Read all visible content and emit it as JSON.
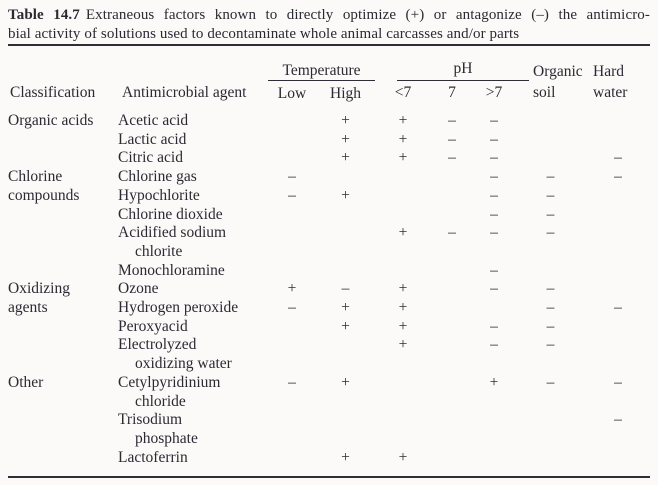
{
  "title": {
    "label": "Table 14.7",
    "line1": "Extraneous factors known to directly optimize (+) or antagonize (–) the antimicro-",
    "line2": "bial activity of solutions used to decontaminate whole animal carcasses and/or parts"
  },
  "columns": {
    "classification": "Classification",
    "agent": "Antimicrobial agent",
    "temperature_group": "Temperature",
    "low": "Low",
    "high": "High",
    "ph_group": "pH",
    "ph_lt7": "<7",
    "ph_7": "7",
    "ph_gt7": ">7",
    "organic_soil_line1": "Organic",
    "organic_soil_line2": "soil",
    "hard_water_line1": "Hard",
    "hard_water_line2": "water"
  },
  "symbols": {
    "optimize": "+",
    "antagonize": "–"
  },
  "table": {
    "rows": [
      {
        "classification": "Organic acids",
        "agent": "Acetic acid",
        "high": "+",
        "ph_lt7": "+",
        "ph_7": "–",
        "ph_gt7": "–"
      },
      {
        "agent": "Lactic acid",
        "high": "+",
        "ph_lt7": "+",
        "ph_7": "–",
        "ph_gt7": "–"
      },
      {
        "agent": "Citric acid",
        "high": "+",
        "ph_lt7": "+",
        "ph_7": "–",
        "ph_gt7": "–",
        "hard_water": "–"
      },
      {
        "classification": "Chlorine",
        "agent": "Chlorine gas",
        "low": "–",
        "ph_gt7": "–",
        "organic_soil": "–",
        "hard_water": "–"
      },
      {
        "classification": "compounds",
        "classification_indent": true,
        "agent": "Hypochlorite",
        "low": "–",
        "high": "+",
        "ph_gt7": "–",
        "organic_soil": "–"
      },
      {
        "agent": "Chlorine dioxide",
        "ph_gt7": "–",
        "organic_soil": "–"
      },
      {
        "agent": "Acidified sodium",
        "ph_lt7": "+",
        "ph_7": "–",
        "ph_gt7": "–",
        "organic_soil": "–"
      },
      {
        "agent": "chlorite",
        "agent_indent": true
      },
      {
        "agent": "Monochloramine",
        "ph_gt7": "–"
      },
      {
        "classification": "Oxidizing",
        "agent": "Ozone",
        "low": "+",
        "high": "–",
        "ph_lt7": "+",
        "ph_gt7": "–",
        "organic_soil": "–"
      },
      {
        "classification": "agents",
        "classification_indent": true,
        "agent": "Hydrogen peroxide",
        "low": "–",
        "high": "+",
        "ph_lt7": "+",
        "organic_soil": "–",
        "hard_water": "–"
      },
      {
        "agent": "Peroxyacid",
        "high": "+",
        "ph_lt7": "+",
        "ph_gt7": "–",
        "organic_soil": "–"
      },
      {
        "agent": "Electrolyzed",
        "ph_lt7": "+",
        "ph_gt7": "–",
        "organic_soil": "–"
      },
      {
        "agent": "oxidizing water",
        "agent_indent": true
      },
      {
        "classification": "Other",
        "agent": "Cetylpyridinium",
        "low": "–",
        "high": "+",
        "ph_gt7": "+",
        "organic_soil": "–",
        "hard_water": "–"
      },
      {
        "agent": "chloride",
        "agent_indent": true
      },
      {
        "agent": "Trisodium",
        "hard_water": "–"
      },
      {
        "agent": "phosphate",
        "agent_indent": true
      },
      {
        "agent": "Lactoferrin",
        "high": "+",
        "ph_lt7": "+"
      }
    ]
  }
}
